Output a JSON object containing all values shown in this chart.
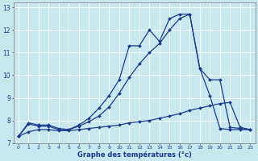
{
  "xlabel": "Graphe des températures (°c)",
  "xlim": [
    -0.5,
    23.5
  ],
  "ylim": [
    7,
    13.2
  ],
  "yticks": [
    7,
    8,
    9,
    10,
    11,
    12,
    13
  ],
  "xticks": [
    0,
    1,
    2,
    3,
    4,
    5,
    6,
    7,
    8,
    9,
    10,
    11,
    12,
    13,
    14,
    15,
    16,
    17,
    18,
    19,
    20,
    21,
    22,
    23
  ],
  "bg_color": "#c8e8f0",
  "line_color": "#1a3a8c",
  "grid_color": "#ffffff",
  "line1_x": [
    0,
    1,
    2,
    3,
    4,
    5,
    6,
    7,
    8,
    9,
    10,
    11,
    12,
    13,
    14,
    15,
    16,
    17,
    18,
    19,
    20,
    21,
    22,
    23
  ],
  "line1_y": [
    7.3,
    7.9,
    7.8,
    7.8,
    7.65,
    7.6,
    7.8,
    8.1,
    8.55,
    9.1,
    9.8,
    11.3,
    11.3,
    12.0,
    11.5,
    12.5,
    12.7,
    12.7,
    10.3,
    9.8,
    9.8,
    7.7,
    7.65,
    7.6
  ],
  "line2_x": [
    0,
    1,
    2,
    3,
    4,
    5,
    6,
    7,
    8,
    9,
    10,
    11,
    12,
    13,
    14,
    15,
    16,
    17,
    18,
    19,
    20,
    21,
    22,
    23
  ],
  "line2_y": [
    7.3,
    7.85,
    7.75,
    7.75,
    7.6,
    7.6,
    7.75,
    7.95,
    8.2,
    8.6,
    9.2,
    9.9,
    10.5,
    11.0,
    11.4,
    12.0,
    12.5,
    12.7,
    10.3,
    9.1,
    7.65,
    7.6,
    7.6,
    7.6
  ],
  "line3_x": [
    0,
    1,
    2,
    3,
    4,
    5,
    6,
    7,
    8,
    9,
    10,
    11,
    12,
    13,
    14,
    15,
    16,
    17,
    18,
    19,
    20,
    21,
    22,
    23
  ],
  "line3_y": [
    7.3,
    7.5,
    7.6,
    7.6,
    7.55,
    7.55,
    7.6,
    7.65,
    7.7,
    7.75,
    7.8,
    7.9,
    7.95,
    8.0,
    8.1,
    8.2,
    8.3,
    8.45,
    8.55,
    8.65,
    8.75,
    8.8,
    7.7,
    7.6
  ]
}
